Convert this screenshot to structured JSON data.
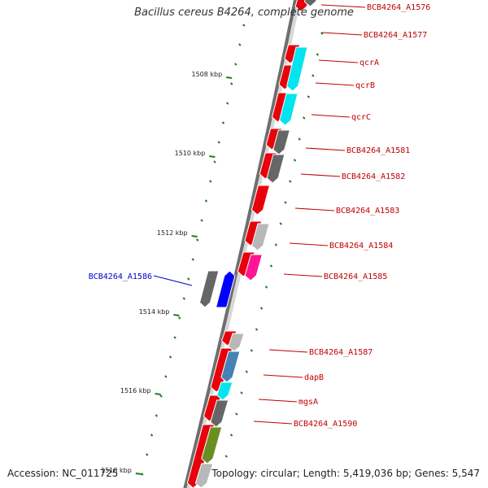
{
  "title": "Bacillus cereus B4264, complete genome",
  "accession": "Accession: NC_011725",
  "topology": "Topology: circular; Length: 5,419,036 bp; Genes: 5,547",
  "colors": {
    "backbone_dark": "#6e6e6e",
    "backbone_light": "#d8d8d8",
    "cds": "#e8000b",
    "plus_strand_label": "#c00000",
    "minus_strand_label": "#0000cc",
    "tick": "#1a7f1a",
    "cyan": "#00e5ee",
    "dark_gray": "#666666",
    "light_gray": "#b8b8b8",
    "magenta": "#ff1493",
    "steel_blue": "#4682b4",
    "olive": "#6b8e23",
    "blue": "#0000ff"
  },
  "tick_labels": [
    "1508 kbp",
    "1510 kbp",
    "1512 kbp",
    "1514 kbp",
    "1516 kbp",
    "1518 kbp"
  ],
  "genes": [
    {
      "label": "BCB4264_A1576",
      "strand": "plus"
    },
    {
      "label": "BCB4264_A1577",
      "strand": "plus"
    },
    {
      "label": "qcrA",
      "strand": "plus"
    },
    {
      "label": "qcrB",
      "strand": "plus"
    },
    {
      "label": "qcrC",
      "strand": "plus"
    },
    {
      "label": "BCB4264_A1581",
      "strand": "plus"
    },
    {
      "label": "BCB4264_A1582",
      "strand": "plus"
    },
    {
      "label": "BCB4264_A1583",
      "strand": "plus"
    },
    {
      "label": "BCB4264_A1584",
      "strand": "plus"
    },
    {
      "label": "BCB4264_A1585",
      "strand": "plus"
    },
    {
      "label": "BCB4264_A1586",
      "strand": "minus"
    },
    {
      "label": "BCB4264_A1587",
      "strand": "plus"
    },
    {
      "label": "dapB",
      "strand": "plus"
    },
    {
      "label": "mgsA",
      "strand": "plus"
    },
    {
      "label": "BCB4264_A1590",
      "strand": "plus"
    }
  ]
}
